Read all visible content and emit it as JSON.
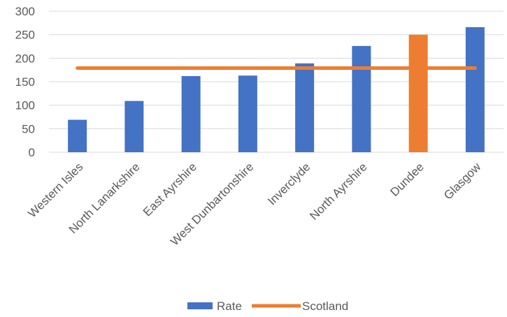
{
  "chart_data": {
    "type": "bar",
    "title": "",
    "xlabel": "",
    "ylabel": "",
    "ylim": [
      0,
      300
    ],
    "yticks": [
      0,
      50,
      100,
      150,
      200,
      250,
      300
    ],
    "grid": true,
    "legend_position": "bottom",
    "categories": [
      "Western Isles",
      "North Lanarkshire",
      "East Ayrshire",
      "West Dunbartonshire",
      "Inverclyde",
      "North Ayrshire",
      "Dundee",
      "Glasgow"
    ],
    "series": [
      {
        "name": "Rate",
        "type": "bar",
        "color": "#4472c4",
        "values": [
          69,
          109,
          162,
          163,
          189,
          226,
          250,
          266
        ],
        "highlight": {
          "index": 6,
          "color": "#ed7d31"
        }
      },
      {
        "name": "Scotland",
        "type": "line",
        "color": "#ed7d31",
        "values": [
          179,
          179,
          179,
          179,
          179,
          179,
          179,
          179
        ]
      }
    ]
  }
}
